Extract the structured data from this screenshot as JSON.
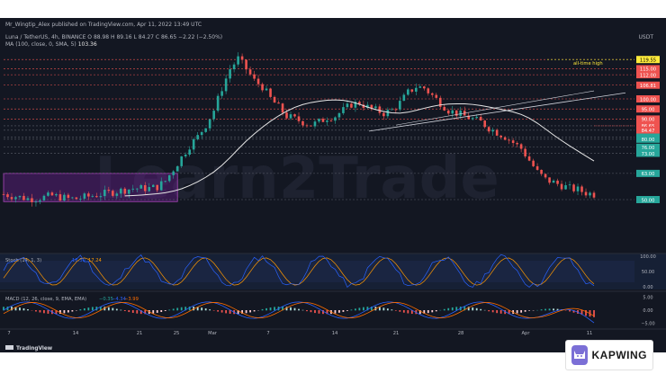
{
  "header": {
    "publisher": "Mr_Wingtip_Alex published on TradingView.com, Apr 11, 2022 13:49 UTC",
    "symbol_line": "Luna / TetherUS, 4h, BINANCE  O 88.98  H 89.16  L 84.27  C 86.65  −2.22 (−2.50%)",
    "ma_label": "MA (100, close, 0, SMA, 5)",
    "ma_value": "103.36",
    "currency": "USDT"
  },
  "watermark": "Learn2Trade",
  "tradingview_label": "TradingView",
  "kapwing_label": "KAPWING",
  "annotation": "all-time high",
  "colors": {
    "background": "#131722",
    "up": "#26a69a",
    "down": "#ef5350",
    "ma": "#e6e6e6",
    "level": "#ef5350",
    "support": "#26a69a",
    "stoch_k": "#2962ff",
    "stoch_d": "#ff9800",
    "macd": "#2962ff",
    "signal": "#ff6d00",
    "range_box": "#7b1fa2",
    "ath": "#ffeb3b"
  },
  "chart_data": [
    {
      "type": "line",
      "name": "price",
      "ylim": [
        25,
        125
      ],
      "x_ticks": [
        "7",
        "14",
        "21",
        "25",
        "Mar",
        "7",
        "14",
        "21",
        "28",
        "Apr",
        "11"
      ],
      "price_path": [
        [
          0,
          93
        ],
        [
          2,
          92
        ],
        [
          4,
          91
        ],
        [
          6,
          90
        ],
        [
          8,
          90
        ],
        [
          10,
          91
        ],
        [
          12,
          92
        ],
        [
          14,
          91
        ],
        [
          16,
          90
        ],
        [
          18,
          90
        ],
        [
          20,
          91
        ],
        [
          22,
          92
        ],
        [
          24,
          93
        ],
        [
          26,
          94
        ],
        [
          28,
          95
        ],
        [
          30,
          96
        ],
        [
          32,
          97
        ],
        [
          34,
          97
        ],
        [
          36,
          97
        ],
        [
          38,
          98
        ],
        [
          40,
          102
        ],
        [
          42,
          110
        ],
        [
          44,
          118
        ],
        [
          46,
          126
        ],
        [
          48,
          132
        ],
        [
          50,
          140
        ],
        [
          52,
          150
        ],
        [
          54,
          165
        ],
        [
          56,
          178
        ],
        [
          58,
          185
        ],
        [
          60,
          178
        ],
        [
          62,
          170
        ],
        [
          64,
          166
        ],
        [
          66,
          158
        ],
        [
          68,
          152
        ],
        [
          70,
          146
        ],
        [
          72,
          144
        ],
        [
          74,
          142
        ],
        [
          76,
          140
        ],
        [
          78,
          142
        ],
        [
          80,
          145
        ],
        [
          82,
          146
        ],
        [
          84,
          150
        ],
        [
          86,
          154
        ],
        [
          88,
          155
        ],
        [
          90,
          152
        ],
        [
          92,
          150
        ],
        [
          94,
          148
        ],
        [
          96,
          150
        ],
        [
          98,
          155
        ],
        [
          100,
          162
        ],
        [
          102,
          166
        ],
        [
          104,
          165
        ],
        [
          106,
          160
        ],
        [
          108,
          155
        ],
        [
          110,
          150
        ],
        [
          112,
          148
        ],
        [
          114,
          146
        ],
        [
          116,
          144
        ],
        [
          118,
          142
        ],
        [
          120,
          138
        ],
        [
          122,
          135
        ],
        [
          124,
          132
        ],
        [
          126,
          128
        ],
        [
          128,
          124
        ],
        [
          130,
          116
        ],
        [
          132,
          108
        ],
        [
          134,
          103
        ],
        [
          136,
          101
        ],
        [
          138,
          99
        ],
        [
          140,
          97
        ],
        [
          142,
          96
        ],
        [
          144,
          94
        ],
        [
          146,
          93
        ]
      ],
      "levels": [
        119.55,
        115.0,
        112.0,
        106.81,
        100.0,
        95.0,
        90.0,
        86.65,
        84.47,
        81.0,
        80.0,
        76.0,
        73.0,
        63.0,
        50.0
      ],
      "level_labels": [
        "119.55",
        "115.00",
        "112.00",
        "106.81",
        "100.00",
        "95.00",
        "90.00",
        "86.65",
        "84.47",
        "81.00",
        "80.00",
        "76.00",
        "73.00",
        "63.00",
        "50.00"
      ],
      "range_box": {
        "x_start": 0,
        "x_end": 43,
        "y_low": 49,
        "y_high": 63
      }
    },
    {
      "type": "line",
      "name": "stoch",
      "label": "Stoch (14, 1, 3)",
      "values_text": [
        "16.30",
        "17.24"
      ],
      "ylim": [
        0,
        100
      ],
      "ticks": [
        "100.00",
        "50.00",
        "0.00"
      ]
    },
    {
      "type": "line",
      "name": "macd",
      "label": "MACD (12, 26, close, 9, EMA, EMA)",
      "values_text": [
        "−0.35",
        "−4.34",
        "−3.99"
      ],
      "ticks": [
        "5.00",
        "0.00",
        "−5.00"
      ]
    }
  ]
}
